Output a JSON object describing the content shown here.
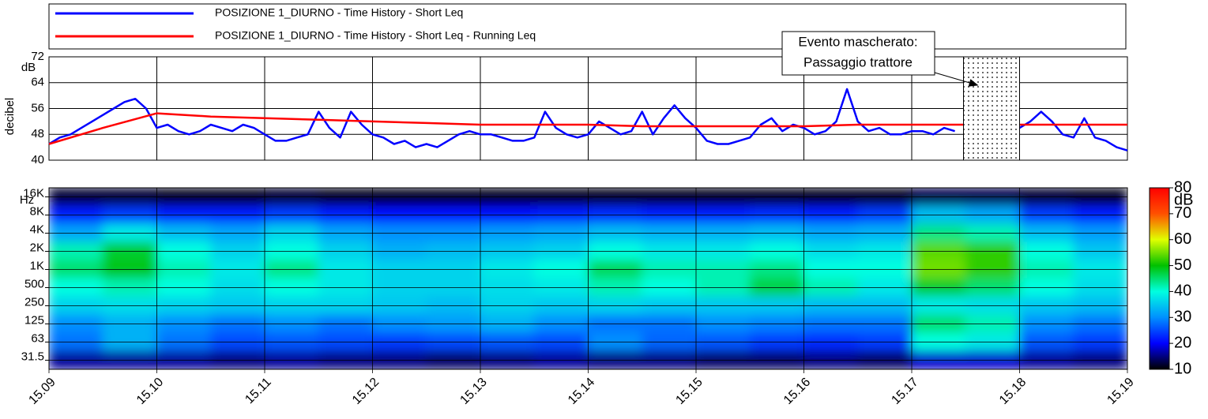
{
  "chart_data": [
    {
      "type": "line",
      "ylabel": "decibel",
      "yunit": "dB",
      "xlim": [
        15.09,
        15.19
      ],
      "ylim": [
        40,
        72
      ],
      "yticks": [
        40,
        48,
        56,
        64,
        72
      ],
      "grid": true,
      "series": [
        {
          "name": "POSIZIONE 1_DIURNO - Time History - Short Leq",
          "color": "#0000ff",
          "x": [
            15.09,
            15.091,
            15.092,
            15.093,
            15.094,
            15.095,
            15.096,
            15.097,
            15.098,
            15.099,
            15.1,
            15.101,
            15.102,
            15.103,
            15.104,
            15.105,
            15.106,
            15.107,
            15.108,
            15.109,
            15.11,
            15.111,
            15.112,
            15.113,
            15.114,
            15.115,
            15.116,
            15.117,
            15.118,
            15.119,
            15.12,
            15.121,
            15.122,
            15.123,
            15.124,
            15.125,
            15.126,
            15.127,
            15.128,
            15.129,
            15.13,
            15.131,
            15.132,
            15.133,
            15.134,
            15.135,
            15.136,
            15.137,
            15.138,
            15.139,
            15.14,
            15.141,
            15.142,
            15.143,
            15.144,
            15.145,
            15.146,
            15.147,
            15.148,
            15.149,
            15.15,
            15.151,
            15.152,
            15.153,
            15.154,
            15.155,
            15.156,
            15.157,
            15.158,
            15.159,
            15.16,
            15.161,
            15.162,
            15.163,
            15.164,
            15.165,
            15.166,
            15.167,
            15.168,
            15.169,
            15.17,
            15.171,
            15.172,
            15.173,
            15.174,
            15.175,
            15.176,
            15.177,
            15.178,
            15.179,
            15.18,
            15.181,
            15.182,
            15.183,
            15.184,
            15.185,
            15.186,
            15.187,
            15.188,
            15.189,
            15.19
          ],
          "values": [
            45,
            47,
            48,
            50,
            52,
            54,
            56,
            58,
            59,
            56,
            50,
            51,
            49,
            48,
            49,
            51,
            50,
            49,
            51,
            50,
            48,
            46,
            46,
            47,
            48,
            55,
            50,
            47,
            55,
            51,
            48,
            47,
            45,
            46,
            44,
            45,
            44,
            46,
            48,
            49,
            48,
            48,
            47,
            46,
            46,
            47,
            55,
            50,
            48,
            47,
            48,
            52,
            50,
            48,
            49,
            55,
            48,
            53,
            57,
            53,
            50,
            46,
            45,
            45,
            46,
            47,
            51,
            53,
            49,
            51,
            50,
            48,
            49,
            52,
            62,
            52,
            49,
            50,
            48,
            48,
            49,
            49,
            48,
            50,
            49,
            null,
            null,
            null,
            null,
            null,
            50,
            52,
            55,
            52,
            48,
            47,
            53,
            47,
            46,
            44,
            43
          ]
        },
        {
          "name": "POSIZIONE 1_DIURNO - Time History - Short Leq - Running Leq",
          "color": "#ff0000",
          "x": [
            15.09,
            15.095,
            15.1,
            15.105,
            15.11,
            15.115,
            15.12,
            15.125,
            15.13,
            15.135,
            15.14,
            15.145,
            15.15,
            15.155,
            15.16,
            15.165,
            15.17,
            15.175,
            15.18,
            15.185,
            15.19
          ],
          "values": [
            45,
            50,
            54.5,
            53.5,
            53,
            52.5,
            52,
            51.5,
            51,
            51,
            51,
            50.5,
            50.5,
            50.5,
            50.5,
            51,
            51,
            51,
            51,
            51,
            51
          ]
        }
      ],
      "annotation": {
        "text": [
          "Evento mascherato:",
          "Passaggio trattore"
        ],
        "masked_range": [
          15.1748,
          15.18
        ]
      }
    },
    {
      "type": "heatmap",
      "xlim": [
        15.09,
        15.19
      ],
      "xticks": [
        15.09,
        {
          "value": 15.1,
          "label": "15.10"
        },
        15.11,
        15.12,
        15.13,
        15.14,
        15.15,
        15.16,
        15.17,
        15.18,
        15.19
      ],
      "x_bins": [
        15.09,
        15.095,
        15.1,
        15.105,
        15.11,
        15.115,
        15.12,
        15.125,
        15.13,
        15.135,
        15.14,
        15.145,
        15.15,
        15.155,
        15.16,
        15.165,
        15.17,
        15.175,
        15.18,
        15.185,
        15.19
      ],
      "categories": [
        "16K",
        "8K",
        "4K",
        "2K",
        "1K",
        "500",
        "250",
        "125",
        "63",
        "31.5"
      ],
      "yunit": "Hz",
      "z": [
        [
          12,
          12,
          11,
          11,
          12,
          11,
          11,
          11,
          11,
          11,
          11,
          11,
          11,
          11,
          11,
          11,
          13,
          13,
          12,
          11
        ],
        [
          22,
          24,
          22,
          22,
          24,
          22,
          21,
          21,
          21,
          22,
          23,
          22,
          22,
          23,
          22,
          24,
          34,
          32,
          24,
          22
        ],
        [
          32,
          38,
          34,
          32,
          36,
          32,
          30,
          30,
          31,
          32,
          34,
          33,
          33,
          34,
          32,
          33,
          44,
          42,
          34,
          31
        ],
        [
          42,
          48,
          40,
          36,
          40,
          36,
          33,
          34,
          35,
          36,
          40,
          38,
          38,
          40,
          37,
          38,
          54,
          52,
          40,
          35
        ],
        [
          45,
          49,
          42,
          38,
          44,
          38,
          36,
          36,
          38,
          40,
          46,
          42,
          42,
          44,
          40,
          40,
          55,
          52,
          42,
          38
        ],
        [
          40,
          42,
          40,
          37,
          40,
          38,
          36,
          36,
          37,
          38,
          42,
          40,
          42,
          47,
          42,
          38,
          48,
          45,
          40,
          37
        ],
        [
          36,
          37,
          36,
          35,
          36,
          36,
          35,
          34,
          36,
          35,
          36,
          35,
          35,
          35,
          34,
          34,
          38,
          37,
          35,
          34
        ],
        [
          30,
          33,
          30,
          28,
          30,
          28,
          30,
          31,
          33,
          30,
          28,
          28,
          30,
          29,
          28,
          28,
          45,
          42,
          30,
          28
        ],
        [
          28,
          33,
          28,
          25,
          26,
          25,
          24,
          25,
          26,
          25,
          30,
          27,
          26,
          24,
          23,
          24,
          40,
          38,
          26,
          24
        ],
        [
          16,
          16,
          16,
          15,
          16,
          15,
          15,
          14,
          15,
          16,
          15,
          15,
          14,
          14,
          15,
          14,
          18,
          18,
          16,
          15
        ]
      ],
      "colorbar": {
        "label": "dB",
        "lim": [
          10,
          80
        ],
        "ticks": [
          10,
          20,
          30,
          40,
          50,
          60,
          70,
          80
        ]
      },
      "colorscale": [
        [
          10,
          "#000000"
        ],
        [
          20,
          "#0000ff"
        ],
        [
          30,
          "#0090ff"
        ],
        [
          40,
          "#00ffe0"
        ],
        [
          50,
          "#00c000"
        ],
        [
          60,
          "#e0ff00"
        ],
        [
          70,
          "#ff5000"
        ],
        [
          80,
          "#ff0000"
        ]
      ]
    }
  ]
}
